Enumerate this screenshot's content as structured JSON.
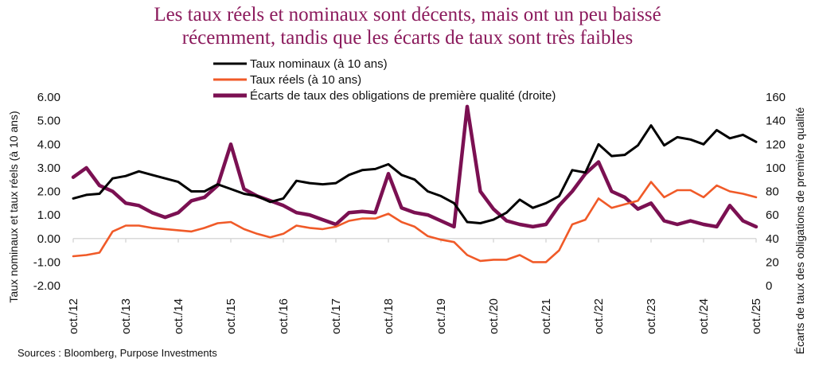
{
  "title_lines": [
    "Les taux réels et nominaux sont décents, mais ont un peu baissé",
    "récemment, tandis que les écarts de taux sont très faibles"
  ],
  "sources": "Sources : Bloomberg, Purpose Investments",
  "colors": {
    "title": "#8B1A5C",
    "nominal": "#000000",
    "real": "#F05A28",
    "spread": "#7B1052",
    "axis": "#d9d9d9"
  },
  "chart_data": {
    "type": "line",
    "title": "Les taux réels et nominaux sont décents, mais ont un peu baissé récemment, tandis que les écarts de taux sont très faibles",
    "ylabel": "Taux nominaux et taux réels (à 10 ans)",
    "y2label": "Écarts de taux des obligations de première qualité",
    "xlabel": "",
    "ylim": [
      -2,
      6
    ],
    "y2lim": [
      0,
      160
    ],
    "yticks": [
      "6.00",
      "5.00",
      "4.00",
      "3.00",
      "2.00",
      "1.00",
      "0.00",
      "-1.00",
      "-2.00"
    ],
    "y2ticks": [
      "160",
      "140",
      "120",
      "100",
      "80",
      "60",
      "40",
      "20",
      "0"
    ],
    "xlim": [
      2012.75,
      2025.75
    ],
    "xtick_labels": [
      "oct./12",
      "oct./13",
      "oct./14",
      "oct./15",
      "oct./16",
      "oct./17",
      "oct./18",
      "oct./19",
      "oct./20",
      "oct./21",
      "oct./22",
      "oct./23",
      "oct./24",
      "oct./25"
    ],
    "legend_position": "top-center",
    "grid": false,
    "x": [
      2012.75,
      2013.0,
      2013.25,
      2013.5,
      2013.75,
      2014.0,
      2014.25,
      2014.5,
      2014.75,
      2015.0,
      2015.25,
      2015.5,
      2015.75,
      2016.0,
      2016.25,
      2016.5,
      2016.75,
      2017.0,
      2017.25,
      2017.5,
      2017.75,
      2018.0,
      2018.25,
      2018.5,
      2018.75,
      2019.0,
      2019.25,
      2019.5,
      2019.75,
      2020.0,
      2020.25,
      2020.5,
      2020.75,
      2021.0,
      2021.25,
      2021.5,
      2021.75,
      2022.0,
      2022.25,
      2022.5,
      2022.75,
      2023.0,
      2023.25,
      2023.5,
      2023.75,
      2024.0,
      2024.25,
      2024.5,
      2024.75,
      2025.0,
      2025.25,
      2025.5,
      2025.75
    ],
    "series": [
      {
        "name": "Taux nominaux  (à 10 ans)",
        "axis": "left",
        "color_key": "nominal",
        "values": [
          1.7,
          1.85,
          1.9,
          2.55,
          2.65,
          2.85,
          2.7,
          2.55,
          2.4,
          2.0,
          2.0,
          2.3,
          2.1,
          1.9,
          1.8,
          1.55,
          1.7,
          2.45,
          2.35,
          2.3,
          2.35,
          2.7,
          2.9,
          2.95,
          3.15,
          2.7,
          2.5,
          2.0,
          1.8,
          1.5,
          0.7,
          0.65,
          0.8,
          1.1,
          1.65,
          1.3,
          1.5,
          1.8,
          2.9,
          2.8,
          4.0,
          3.5,
          3.55,
          3.95,
          4.8,
          3.95,
          4.3,
          4.2,
          4.0,
          4.6,
          4.25,
          4.4,
          4.1
        ]
      },
      {
        "name": "Taux réels (à 10 ans)",
        "axis": "left",
        "color_key": "real",
        "values": [
          -0.75,
          -0.7,
          -0.6,
          0.3,
          0.55,
          0.55,
          0.45,
          0.4,
          0.35,
          0.3,
          0.45,
          0.65,
          0.7,
          0.4,
          0.2,
          0.05,
          0.2,
          0.55,
          0.45,
          0.4,
          0.5,
          0.75,
          0.85,
          0.85,
          1.05,
          0.7,
          0.5,
          0.1,
          -0.05,
          -0.15,
          -0.7,
          -0.95,
          -0.9,
          -0.9,
          -0.7,
          -1.0,
          -1.0,
          -0.5,
          0.6,
          0.8,
          1.7,
          1.3,
          1.45,
          1.6,
          2.4,
          1.75,
          2.05,
          2.05,
          1.75,
          2.25,
          2.0,
          1.9,
          1.75
        ]
      },
      {
        "name": "Écarts de taux des obligations de première qualité (droite)",
        "axis": "right",
        "color_key": "spread",
        "values": [
          92,
          100,
          85,
          80,
          70,
          68,
          62,
          58,
          62,
          72,
          75,
          85,
          120,
          82,
          76,
          72,
          68,
          62,
          60,
          56,
          52,
          62,
          63,
          62,
          95,
          66,
          62,
          60,
          55,
          50,
          152,
          80,
          65,
          55,
          52,
          50,
          52,
          68,
          80,
          95,
          105,
          80,
          75,
          65,
          70,
          55,
          52,
          55,
          52,
          50,
          68,
          55,
          50
        ]
      }
    ]
  }
}
